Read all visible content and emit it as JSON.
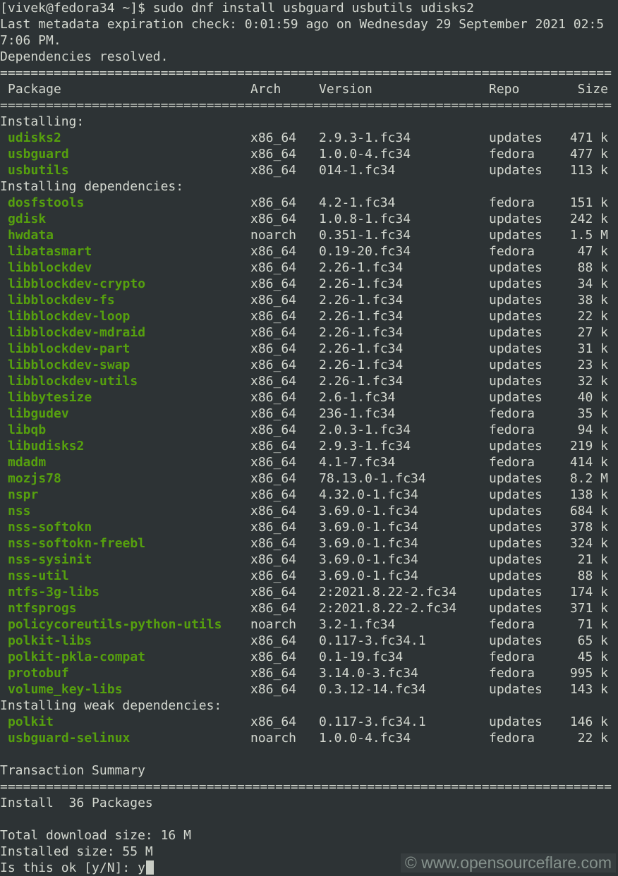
{
  "colors": {
    "background": "#2d3335",
    "foreground": "#d3d7cf",
    "package_green": "#56a00e",
    "cursor": "#c9cdc5",
    "watermark": "#a3b2aa"
  },
  "command_line": {
    "prompt": "[vivek@fedora34 ~]$ ",
    "command": "sudo dnf install usbguard usbutils udisks2"
  },
  "metadata_line_1": "Last metadata expiration check: 0:01:59 ago on Wednesday 29 September 2021 02:5",
  "metadata_line_2": "7:06 PM.",
  "resolved_line": "Dependencies resolved.",
  "separator": "================================================================================",
  "table_header": {
    "package": "Package",
    "arch": "Arch",
    "version": "Version",
    "repo": "Repo",
    "size": "Size"
  },
  "sections": [
    {
      "label": "Installing:",
      "packages": [
        {
          "name": "udisks2",
          "arch": "x86_64",
          "version": "2.9.3-1.fc34",
          "repo": "updates",
          "size": "471 k"
        },
        {
          "name": "usbguard",
          "arch": "x86_64",
          "version": "1.0.0-4.fc34",
          "repo": "fedora",
          "size": "477 k"
        },
        {
          "name": "usbutils",
          "arch": "x86_64",
          "version": "014-1.fc34",
          "repo": "updates",
          "size": "113 k"
        }
      ]
    },
    {
      "label": "Installing dependencies:",
      "packages": [
        {
          "name": "dosfstools",
          "arch": "x86_64",
          "version": "4.2-1.fc34",
          "repo": "fedora",
          "size": "151 k"
        },
        {
          "name": "gdisk",
          "arch": "x86_64",
          "version": "1.0.8-1.fc34",
          "repo": "updates",
          "size": "242 k"
        },
        {
          "name": "hwdata",
          "arch": "noarch",
          "version": "0.351-1.fc34",
          "repo": "updates",
          "size": "1.5 M"
        },
        {
          "name": "libatasmart",
          "arch": "x86_64",
          "version": "0.19-20.fc34",
          "repo": "fedora",
          "size": "47 k"
        },
        {
          "name": "libblockdev",
          "arch": "x86_64",
          "version": "2.26-1.fc34",
          "repo": "updates",
          "size": "88 k"
        },
        {
          "name": "libblockdev-crypto",
          "arch": "x86_64",
          "version": "2.26-1.fc34",
          "repo": "updates",
          "size": "34 k"
        },
        {
          "name": "libblockdev-fs",
          "arch": "x86_64",
          "version": "2.26-1.fc34",
          "repo": "updates",
          "size": "38 k"
        },
        {
          "name": "libblockdev-loop",
          "arch": "x86_64",
          "version": "2.26-1.fc34",
          "repo": "updates",
          "size": "22 k"
        },
        {
          "name": "libblockdev-mdraid",
          "arch": "x86_64",
          "version": "2.26-1.fc34",
          "repo": "updates",
          "size": "27 k"
        },
        {
          "name": "libblockdev-part",
          "arch": "x86_64",
          "version": "2.26-1.fc34",
          "repo": "updates",
          "size": "31 k"
        },
        {
          "name": "libblockdev-swap",
          "arch": "x86_64",
          "version": "2.26-1.fc34",
          "repo": "updates",
          "size": "23 k"
        },
        {
          "name": "libblockdev-utils",
          "arch": "x86_64",
          "version": "2.26-1.fc34",
          "repo": "updates",
          "size": "32 k"
        },
        {
          "name": "libbytesize",
          "arch": "x86_64",
          "version": "2.6-1.fc34",
          "repo": "updates",
          "size": "40 k"
        },
        {
          "name": "libgudev",
          "arch": "x86_64",
          "version": "236-1.fc34",
          "repo": "fedora",
          "size": "35 k"
        },
        {
          "name": "libqb",
          "arch": "x86_64",
          "version": "2.0.3-1.fc34",
          "repo": "fedora",
          "size": "94 k"
        },
        {
          "name": "libudisks2",
          "arch": "x86_64",
          "version": "2.9.3-1.fc34",
          "repo": "updates",
          "size": "219 k"
        },
        {
          "name": "mdadm",
          "arch": "x86_64",
          "version": "4.1-7.fc34",
          "repo": "fedora",
          "size": "414 k"
        },
        {
          "name": "mozjs78",
          "arch": "x86_64",
          "version": "78.13.0-1.fc34",
          "repo": "updates",
          "size": "8.2 M"
        },
        {
          "name": "nspr",
          "arch": "x86_64",
          "version": "4.32.0-1.fc34",
          "repo": "updates",
          "size": "138 k"
        },
        {
          "name": "nss",
          "arch": "x86_64",
          "version": "3.69.0-1.fc34",
          "repo": "updates",
          "size": "684 k"
        },
        {
          "name": "nss-softokn",
          "arch": "x86_64",
          "version": "3.69.0-1.fc34",
          "repo": "updates",
          "size": "378 k"
        },
        {
          "name": "nss-softokn-freebl",
          "arch": "x86_64",
          "version": "3.69.0-1.fc34",
          "repo": "updates",
          "size": "324 k"
        },
        {
          "name": "nss-sysinit",
          "arch": "x86_64",
          "version": "3.69.0-1.fc34",
          "repo": "updates",
          "size": "21 k"
        },
        {
          "name": "nss-util",
          "arch": "x86_64",
          "version": "3.69.0-1.fc34",
          "repo": "updates",
          "size": "88 k"
        },
        {
          "name": "ntfs-3g-libs",
          "arch": "x86_64",
          "version": "2:2021.8.22-2.fc34",
          "repo": "updates",
          "size": "174 k"
        },
        {
          "name": "ntfsprogs",
          "arch": "x86_64",
          "version": "2:2021.8.22-2.fc34",
          "repo": "updates",
          "size": "371 k"
        },
        {
          "name": "policycoreutils-python-utils",
          "arch": "noarch",
          "version": "3.2-1.fc34",
          "repo": "fedora",
          "size": "71 k"
        },
        {
          "name": "polkit-libs",
          "arch": "x86_64",
          "version": "0.117-3.fc34.1",
          "repo": "updates",
          "size": "65 k"
        },
        {
          "name": "polkit-pkla-compat",
          "arch": "x86_64",
          "version": "0.1-19.fc34",
          "repo": "fedora",
          "size": "45 k"
        },
        {
          "name": "protobuf",
          "arch": "x86_64",
          "version": "3.14.0-3.fc34",
          "repo": "fedora",
          "size": "995 k"
        },
        {
          "name": "volume_key-libs",
          "arch": "x86_64",
          "version": "0.3.12-14.fc34",
          "repo": "updates",
          "size": "143 k"
        }
      ]
    },
    {
      "label": "Installing weak dependencies:",
      "packages": [
        {
          "name": "polkit",
          "arch": "x86_64",
          "version": "0.117-3.fc34.1",
          "repo": "updates",
          "size": "146 k"
        },
        {
          "name": "usbguard-selinux",
          "arch": "noarch",
          "version": "1.0.0-4.fc34",
          "repo": "fedora",
          "size": "22 k"
        }
      ]
    }
  ],
  "transaction": {
    "title": "Transaction Summary",
    "install_summary": "Install  36 Packages",
    "total_download": "Total download size: 16 M",
    "installed_size": "Installed size: 55 M"
  },
  "confirm": {
    "prompt": "Is this ok [y/N]: ",
    "input": "y"
  },
  "watermark": "© www.opensourceflare.com"
}
